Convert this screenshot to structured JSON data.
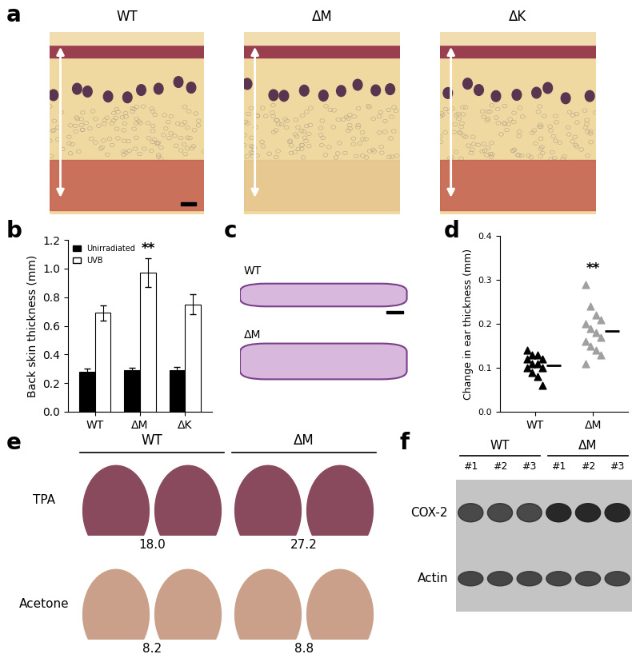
{
  "chart_data": [
    {
      "panel": "b",
      "type": "bar",
      "categories": [
        "WT",
        "ΔM",
        "ΔK"
      ],
      "series": [
        {
          "name": "Unirradiated",
          "color": "#000000",
          "values": [
            0.28,
            0.29,
            0.29
          ],
          "errors": [
            0.02,
            0.015,
            0.02
          ]
        },
        {
          "name": "UVB",
          "color": "#ffffff",
          "values": [
            0.69,
            0.97,
            0.75
          ],
          "errors": [
            0.055,
            0.1,
            0.07
          ]
        }
      ],
      "y_label": "Back skin thickness (mm)",
      "ylim": [
        0,
        1.2
      ],
      "yticks": [
        {
          "value": 0.0,
          "label": "0.0"
        },
        {
          "value": 0.2,
          "label": "0.2"
        },
        {
          "value": 0.4,
          "label": "0.4"
        },
        {
          "value": 0.6,
          "label": "0.6"
        },
        {
          "value": 0.8,
          "label": "0.8"
        },
        {
          "value": 1.0,
          "label": "1.0"
        },
        {
          "value": 1.2,
          "label": "1.2"
        }
      ],
      "legend": "upper left",
      "annotations": [
        {
          "category": "ΔM",
          "text": "**"
        }
      ]
    },
    {
      "panel": "d",
      "type": "scatter",
      "categories": [
        "WT",
        "ΔM"
      ],
      "marker": "triangle",
      "groups": [
        {
          "category": "WT",
          "color": "#000000",
          "values": [
            0.14,
            0.13,
            0.13,
            0.12,
            0.12,
            0.11,
            0.11,
            0.1,
            0.1,
            0.09,
            0.08,
            0.06
          ],
          "mean": 0.105
        },
        {
          "category": "ΔM",
          "color": "#a0a0a0",
          "values": [
            0.29,
            0.24,
            0.22,
            0.21,
            0.2,
            0.19,
            0.18,
            0.17,
            0.16,
            0.15,
            0.14,
            0.13,
            0.11
          ],
          "mean": 0.183
        }
      ],
      "y_label": "Change in ear thickness (mm)",
      "ylim": [
        0,
        0.4
      ],
      "yticks": [
        {
          "value": 0.0,
          "label": "0.0"
        },
        {
          "value": 0.1,
          "label": "0.1"
        },
        {
          "value": 0.2,
          "label": "0.2"
        },
        {
          "value": 0.3,
          "label": "0.3"
        },
        {
          "value": 0.4,
          "label": "0.4"
        }
      ],
      "annotations": [
        {
          "category": "ΔM",
          "text": "**"
        }
      ]
    }
  ],
  "images": {
    "a": {
      "panel": "a",
      "titles": [
        "WT",
        "ΔM",
        "ΔK"
      ]
    },
    "c": {
      "panel": "c",
      "titles": [
        "WT",
        "ΔM"
      ]
    },
    "e": {
      "panel": "e",
      "groups": [
        "WT",
        "ΔM"
      ],
      "rows": [
        {
          "label": "TPA",
          "values": [
            18.0,
            27.2
          ]
        },
        {
          "label": "Acetone",
          "values": [
            8.2,
            8.8
          ]
        }
      ]
    },
    "f": {
      "panel": "f",
      "groups": [
        "WT",
        "ΔM"
      ],
      "lanes": [
        "#1",
        "#2",
        "#3"
      ],
      "bands": [
        "COX-2",
        "Actin"
      ]
    }
  }
}
